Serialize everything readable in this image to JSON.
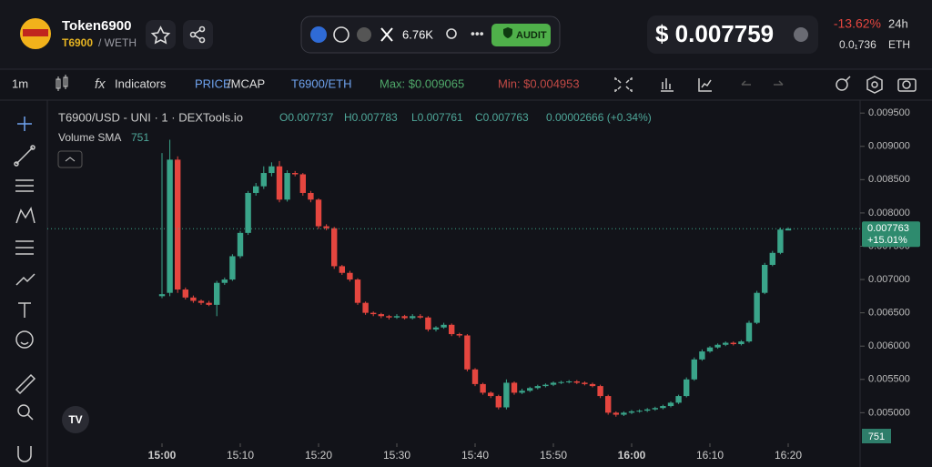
{
  "header": {
    "token_name": "Token6900",
    "symbol": "T6900",
    "pair": "/ WETH",
    "followers": "6.76K",
    "audit": "AUDIT",
    "price": "$ 0.007759",
    "change": "-13.62%",
    "period": "24h",
    "eth_price": "0.0₁736",
    "eth": "ETH"
  },
  "toolbar": {
    "interval": "1m",
    "indicators": "Indicators",
    "price": "PRICE",
    "mcap": "/MCAP",
    "quote": "T6900/ETH",
    "max": "Max: $0.009065",
    "min": "Min: $0.004953"
  },
  "legend": {
    "title": "T6900/USD - UNI · 1 · DEXTools.io",
    "open": "O0.007737",
    "high": "H0.007783",
    "low": "L0.007761",
    "close": "C0.007763",
    "change": "0.00002666 (+0.34%)",
    "volume": "Volume SMA",
    "volume_value": "751",
    "volume_tag": "751"
  },
  "chart_data": {
    "type": "candlestick",
    "categories": [
      "15:00",
      "15:01",
      "15:02",
      "15:03",
      "15:04",
      "15:05",
      "15:06",
      "15:07",
      "15:08",
      "15:09",
      "15:10",
      "15:11",
      "15:12",
      "15:13",
      "15:14",
      "15:15",
      "15:16",
      "15:17",
      "15:18",
      "15:19",
      "15:20",
      "15:21",
      "15:22",
      "15:23",
      "15:24",
      "15:25",
      "15:26",
      "15:27",
      "15:28",
      "15:29",
      "15:30",
      "15:31",
      "15:32",
      "15:33",
      "15:34",
      "15:35",
      "15:36",
      "15:37",
      "15:38",
      "15:39",
      "15:40",
      "15:41",
      "15:42",
      "15:43",
      "15:44",
      "15:45",
      "15:46",
      "15:47",
      "15:48",
      "15:49",
      "15:50",
      "15:51",
      "15:52",
      "15:53",
      "15:54",
      "15:55",
      "15:56",
      "15:57",
      "15:58",
      "15:59",
      "16:00",
      "16:01",
      "16:02",
      "16:03",
      "16:04",
      "16:05",
      "16:06",
      "16:07",
      "16:08",
      "16:09",
      "16:10",
      "16:11",
      "16:12",
      "16:13",
      "16:14",
      "16:15",
      "16:16",
      "16:17",
      "16:18",
      "16:19",
      "16:20"
    ],
    "open": [
      0.00675,
      0.0068,
      0.0088,
      0.00685,
      0.00673,
      0.00668,
      0.00665,
      0.00662,
      0.00695,
      0.007,
      0.00735,
      0.0077,
      0.0083,
      0.0084,
      0.0086,
      0.0087,
      0.0082,
      0.0086,
      0.00858,
      0.0083,
      0.0082,
      0.0078,
      0.00777,
      0.0072,
      0.0071,
      0.007,
      0.00665,
      0.0065,
      0.00648,
      0.00645,
      0.00643,
      0.00645,
      0.00642,
      0.00645,
      0.00643,
      0.00625,
      0.00628,
      0.00632,
      0.00618,
      0.00616,
      0.00565,
      0.00543,
      0.0053,
      0.00525,
      0.00508,
      0.00545,
      0.0053,
      0.00533,
      0.00537,
      0.0054,
      0.00542,
      0.00545,
      0.00546,
      0.00547,
      0.00545,
      0.00543,
      0.0054,
      0.00525,
      0.005,
      0.00497,
      0.005,
      0.00502,
      0.00503,
      0.00505,
      0.00507,
      0.0051,
      0.00515,
      0.00525,
      0.0055,
      0.0058,
      0.00592,
      0.00598,
      0.00602,
      0.00605,
      0.00603,
      0.00607,
      0.00635,
      0.0068,
      0.00722,
      0.0074,
      0.007737
    ],
    "high": [
      0.0089,
      0.0091,
      0.00885,
      0.00688,
      0.00676,
      0.0067,
      0.00668,
      0.00698,
      0.00703,
      0.00738,
      0.00773,
      0.00833,
      0.00845,
      0.0087,
      0.00876,
      0.00878,
      0.00864,
      0.00863,
      0.0086,
      0.00833,
      0.00822,
      0.00783,
      0.00779,
      0.00722,
      0.00713,
      0.00702,
      0.00667,
      0.00652,
      0.0065,
      0.00647,
      0.00648,
      0.00647,
      0.00648,
      0.00648,
      0.00645,
      0.0063,
      0.00635,
      0.00634,
      0.0062,
      0.00618,
      0.00567,
      0.00545,
      0.00532,
      0.00527,
      0.0055,
      0.00547,
      0.00536,
      0.00539,
      0.00542,
      0.00544,
      0.00547,
      0.00548,
      0.00549,
      0.00549,
      0.00547,
      0.00545,
      0.00542,
      0.00527,
      0.00502,
      0.00502,
      0.00504,
      0.00505,
      0.00507,
      0.00509,
      0.00512,
      0.00517,
      0.00527,
      0.00553,
      0.00583,
      0.00595,
      0.006,
      0.00604,
      0.00607,
      0.00607,
      0.00609,
      0.00638,
      0.00683,
      0.00725,
      0.00743,
      0.00778,
      0.007783
    ],
    "low": [
      0.00672,
      0.00675,
      0.0068,
      0.0067,
      0.00665,
      0.00662,
      0.0066,
      0.00645,
      0.00692,
      0.00698,
      0.00732,
      0.00767,
      0.00826,
      0.00836,
      0.00855,
      0.00816,
      0.00817,
      0.00855,
      0.00826,
      0.00816,
      0.00776,
      0.00774,
      0.00716,
      0.00707,
      0.00697,
      0.00662,
      0.00647,
      0.00645,
      0.00642,
      0.0064,
      0.00641,
      0.0064,
      0.0064,
      0.00641,
      0.00622,
      0.00622,
      0.00626,
      0.00615,
      0.00613,
      0.00562,
      0.0054,
      0.00527,
      0.00522,
      0.00505,
      0.00505,
      0.00527,
      0.00528,
      0.00531,
      0.00535,
      0.00538,
      0.0054,
      0.00543,
      0.00544,
      0.00543,
      0.00541,
      0.00538,
      0.00522,
      0.00497,
      0.00494,
      0.00495,
      0.00498,
      0.005,
      0.00501,
      0.00503,
      0.00505,
      0.00508,
      0.00513,
      0.00523,
      0.00548,
      0.00578,
      0.0059,
      0.00596,
      0.006,
      0.00601,
      0.00601,
      0.00605,
      0.00633,
      0.00678,
      0.0072,
      0.00738,
      0.007761
    ],
    "close": [
      0.00678,
      0.0088,
      0.00685,
      0.00673,
      0.00668,
      0.00665,
      0.00662,
      0.00695,
      0.007,
      0.00735,
      0.0077,
      0.0083,
      0.0084,
      0.0086,
      0.0087,
      0.0082,
      0.0086,
      0.00858,
      0.0083,
      0.0082,
      0.0078,
      0.00777,
      0.0072,
      0.0071,
      0.007,
      0.00665,
      0.0065,
      0.00648,
      0.00645,
      0.00643,
      0.00645,
      0.00642,
      0.00645,
      0.00643,
      0.00625,
      0.00628,
      0.00632,
      0.00618,
      0.00616,
      0.00565,
      0.00543,
      0.0053,
      0.00525,
      0.00508,
      0.00545,
      0.0053,
      0.00533,
      0.00537,
      0.0054,
      0.00542,
      0.00545,
      0.00546,
      0.00547,
      0.00545,
      0.00543,
      0.0054,
      0.00525,
      0.005,
      0.00497,
      0.005,
      0.00502,
      0.00503,
      0.00505,
      0.00507,
      0.0051,
      0.00515,
      0.00525,
      0.0055,
      0.0058,
      0.00592,
      0.00598,
      0.00602,
      0.00605,
      0.00603,
      0.00607,
      0.00635,
      0.0068,
      0.00722,
      0.0074,
      0.00775,
      0.007763
    ],
    "up_color": "#3aa58a",
    "down_color": "#e5463f",
    "ylim": [
      0.00454,
      0.00953
    ],
    "yticks": [
      {
        "value": 0.005,
        "label": "0.005000"
      },
      {
        "value": 0.0055,
        "label": "0.005500"
      },
      {
        "value": 0.006,
        "label": "0.006000"
      },
      {
        "value": 0.0065,
        "label": "0.006500"
      },
      {
        "value": 0.007,
        "label": "0.007000"
      },
      {
        "value": 0.0075,
        "label": "0.007500"
      },
      {
        "value": 0.008,
        "label": "0.008000"
      },
      {
        "value": 0.0085,
        "label": "0.008500"
      },
      {
        "value": 0.009,
        "label": "0.009000"
      },
      {
        "value": 0.0095,
        "label": "0.009500"
      }
    ],
    "xticks": [
      "15:00",
      "15:10",
      "15:20",
      "15:30",
      "15:40",
      "15:50",
      "16:00",
      "16:10",
      "16:20"
    ],
    "last_price": {
      "value": 0.007763,
      "label": "0.007763",
      "change": "+15.01%"
    },
    "grid": false
  }
}
